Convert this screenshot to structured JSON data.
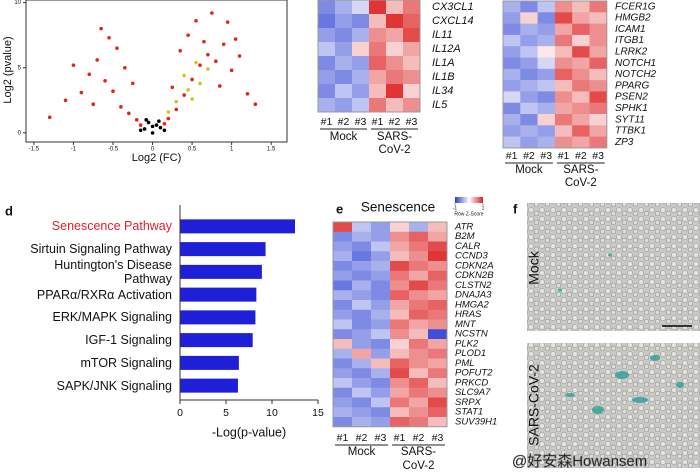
{
  "chart_data": [
    {
      "type": "scatter",
      "xlabel": "Log2 (FC)",
      "ylabel": "Log2 (pvalue)",
      "xlim": [
        -1.6,
        1.7
      ],
      "ylim": [
        -0.7,
        10.2
      ],
      "xticks": [
        -1.5,
        -1,
        -0.5,
        0,
        0.5,
        1,
        1.5
      ],
      "yticks": [
        0,
        5,
        10
      ],
      "series": [
        {
          "color": "#e3241d",
          "x": [
            -1.3,
            -1.1,
            -0.9,
            -0.8,
            -0.7,
            -0.6,
            -0.5,
            -0.4,
            -0.45,
            -0.3,
            -0.25,
            -0.55,
            -1.0,
            -0.35,
            0.3,
            0.4,
            0.5,
            0.6,
            0.7,
            0.8,
            0.9,
            1.0,
            1.1,
            1.2,
            0.35,
            0.45,
            0.55,
            0.65,
            0.75,
            1.3,
            0.25,
            -0.2,
            0.2,
            -0.65,
            0.85,
            -0.15,
            0.15,
            0.95,
            -0.75,
            1.05
          ],
          "y": [
            1.2,
            2.5,
            3.1,
            4.5,
            5.6,
            4.0,
            3.2,
            2.0,
            6.5,
            1.5,
            3.8,
            7.3,
            5.2,
            5.0,
            1.8,
            2.9,
            4.1,
            5.2,
            6.0,
            5.5,
            6.8,
            4.8,
            5.9,
            3.0,
            6.3,
            7.5,
            8.6,
            7.0,
            9.2,
            2.2,
            3.5,
            1.0,
            1.1,
            8.0,
            3.6,
            0.6,
            0.7,
            8.5,
            2.2,
            7.2
          ]
        },
        {
          "color": "#000000",
          "x": [
            0,
            -0.1,
            0.1,
            -0.05,
            0.05,
            -0.15,
            0.15,
            0,
            -0.08,
            0.08
          ],
          "y": [
            0,
            0.3,
            0.4,
            0.8,
            0.6,
            0.2,
            0.2,
            0.5,
            1.0,
            0.9
          ]
        },
        {
          "color": "#d8c21a",
          "x": [
            0.3,
            0.45,
            0.5,
            0.6,
            0.4,
            0.7,
            0.2,
            0.55
          ],
          "y": [
            2.4,
            3.3,
            2.6,
            3.8,
            4.4,
            4.9,
            1.6,
            5.4
          ]
        }
      ]
    },
    {
      "type": "heatmap",
      "zlim": [
        -1,
        1
      ],
      "rows": [
        "CX3CL1",
        "CXCL14",
        "IL11",
        "IL12A",
        "IL1A",
        "IL1B",
        "IL34",
        "IL5"
      ],
      "columns": [
        "#1",
        "#2",
        "#3",
        "#1",
        "#2",
        "#3"
      ],
      "groups": [
        [
          "Mock"
        ],
        [
          "SARS-",
          "CoV-2"
        ]
      ],
      "values": [
        [
          -0.6,
          -0.4,
          -0.2,
          0.9,
          0.3,
          0.6
        ],
        [
          -0.7,
          -0.5,
          -0.6,
          0.3,
          0.9,
          0.7
        ],
        [
          -0.5,
          -0.6,
          -0.4,
          0.5,
          0.4,
          0.8
        ],
        [
          -0.3,
          -0.5,
          0.2,
          0.6,
          0.2,
          0.4
        ],
        [
          -0.6,
          -0.4,
          -0.5,
          0.7,
          0.5,
          0.3
        ],
        [
          -0.5,
          -0.6,
          -0.4,
          0.4,
          0.6,
          0.5
        ],
        [
          -0.6,
          -0.3,
          -0.5,
          0.3,
          0.9,
          0.2
        ],
        [
          -0.4,
          -0.5,
          -0.3,
          0.6,
          0.3,
          0.5
        ]
      ]
    },
    {
      "type": "heatmap",
      "zlim": [
        -1,
        1
      ],
      "rows": [
        "FCER1G",
        "HMGB2",
        "ICAM1",
        "ITGB1",
        "LRRK2",
        "NOTCH1",
        "NOTCH2",
        "PPARG",
        "PSEN2",
        "SPHK1",
        "SYT11",
        "TTBK1",
        "ZP3"
      ],
      "columns": [
        "#1",
        "#2",
        "#3",
        "#1",
        "#2",
        "#3"
      ],
      "groups": [
        [
          "Mock"
        ],
        [
          "SARS-",
          "CoV-2"
        ]
      ],
      "values": [
        [
          -0.4,
          -0.6,
          -0.3,
          0.5,
          0.3,
          0.6
        ],
        [
          -0.5,
          0.2,
          -0.6,
          0.8,
          0.4,
          0.3
        ],
        [
          -0.6,
          -0.4,
          -0.5,
          0.4,
          0.7,
          0.5
        ],
        [
          -0.3,
          -0.5,
          -0.4,
          0.6,
          0.2,
          0.5
        ],
        [
          -0.5,
          -0.3,
          0.1,
          0.3,
          0.8,
          0.4
        ],
        [
          -0.6,
          -0.5,
          -0.2,
          0.5,
          0.4,
          0.7
        ],
        [
          -0.4,
          -0.6,
          -0.5,
          0.7,
          0.5,
          0.3
        ],
        [
          -0.5,
          -0.4,
          -0.3,
          0.3,
          0.6,
          0.5
        ],
        [
          -0.2,
          -0.5,
          -0.6,
          0.5,
          0.3,
          0.8
        ],
        [
          -0.6,
          -0.3,
          -0.4,
          0.4,
          0.5,
          0.6
        ],
        [
          -0.4,
          -0.6,
          0.2,
          0.6,
          0.4,
          0.2
        ],
        [
          -0.5,
          -0.4,
          -0.5,
          0.3,
          0.7,
          0.4
        ],
        [
          -0.3,
          -0.5,
          -0.4,
          0.5,
          0.4,
          0.6
        ]
      ]
    },
    {
      "type": "bar",
      "panel_label": "d",
      "xlabel": "-Log(p-value)",
      "categories": [
        "Senescence Pathway",
        "Sirtuin Signaling Pathway",
        "Huntington's Disease Pathway",
        "PPARα/RXRα Activation",
        "ERK/MAPK Signaling",
        "IGF-1 Signaling",
        "mTOR Signaling",
        "SAPK/JNK Signaling"
      ],
      "values": [
        12.5,
        9.3,
        8.9,
        8.3,
        8.2,
        7.9,
        6.4,
        6.3
      ],
      "color": "#1f1fd8",
      "highlight_index": 0,
      "highlight_color": "#e0202a",
      "xlim": [
        0,
        15
      ],
      "xticks": [
        0,
        5,
        10,
        15
      ]
    },
    {
      "type": "heatmap",
      "panel_label": "e",
      "title": "Senescence",
      "zlim": [
        -1,
        1
      ],
      "colorbar_ticks": [
        -1,
        1
      ],
      "colorbar_label": "Row Z-Score",
      "rows": [
        "ATR",
        "B2M",
        "CALR",
        "CCND3",
        "CDKN2A",
        "CDKN2B",
        "CLSTN2",
        "DNAJA3",
        "HMGA2",
        "HRAS",
        "MNT",
        "NCSTN",
        "PLK2",
        "PLOD1",
        "PML",
        "POFUT2",
        "PRKCD",
        "SLC9A7",
        "SRPX",
        "STAT1",
        "SUV39H1"
      ],
      "columns": [
        "#1",
        "#2",
        "#3",
        "#1",
        "#2",
        "#3"
      ],
      "groups": [
        [
          "Mock"
        ],
        [
          "SARS-",
          "CoV-2"
        ]
      ],
      "values": [
        [
          0.8,
          -0.3,
          -0.5,
          0.2,
          -0.4,
          0.3
        ],
        [
          -0.6,
          -0.4,
          -0.5,
          0.5,
          0.7,
          0.4
        ],
        [
          -0.5,
          -0.6,
          -0.3,
          0.4,
          0.6,
          0.8
        ],
        [
          -0.4,
          -0.7,
          -0.5,
          0.3,
          0.5,
          0.9
        ],
        [
          -0.6,
          -0.5,
          -0.4,
          0.8,
          0.6,
          0.5
        ],
        [
          -0.5,
          -0.6,
          -0.5,
          0.6,
          0.4,
          0.7
        ],
        [
          -0.7,
          -0.4,
          -0.6,
          0.5,
          0.8,
          0.6
        ],
        [
          -0.4,
          -0.5,
          -0.6,
          0.7,
          0.5,
          0.4
        ],
        [
          -0.6,
          -0.3,
          -0.5,
          0.4,
          0.6,
          0.7
        ],
        [
          -0.5,
          -0.6,
          -0.4,
          0.3,
          0.7,
          0.6
        ],
        [
          -0.3,
          -0.6,
          -0.5,
          0.6,
          0.4,
          0.5
        ],
        [
          -0.6,
          -0.5,
          -0.3,
          0.5,
          0.3,
          -0.9
        ],
        [
          0.3,
          -0.5,
          -0.6,
          0.2,
          0.6,
          0.4
        ],
        [
          -0.4,
          0.4,
          -0.5,
          0.3,
          0.5,
          0.6
        ],
        [
          -0.6,
          -0.4,
          0.3,
          0.7,
          0.5,
          0.4
        ],
        [
          -0.5,
          -0.6,
          -0.4,
          0.8,
          0.3,
          0.6
        ],
        [
          -0.3,
          -0.5,
          -0.6,
          0.5,
          0.7,
          0.3
        ],
        [
          -0.6,
          -0.3,
          -0.5,
          0.4,
          0.6,
          0.5
        ],
        [
          -0.5,
          -0.6,
          -0.3,
          0.6,
          0.4,
          0.8
        ],
        [
          -0.4,
          -0.5,
          -0.6,
          0.3,
          0.5,
          0.7
        ],
        [
          -0.6,
          -0.4,
          -0.5,
          0.7,
          0.6,
          0.3
        ]
      ]
    }
  ],
  "panel_f": {
    "panel_label": "f",
    "images": [
      "Mock",
      "SARS-CoV-2"
    ]
  },
  "watermark": "@好安森Howansem"
}
